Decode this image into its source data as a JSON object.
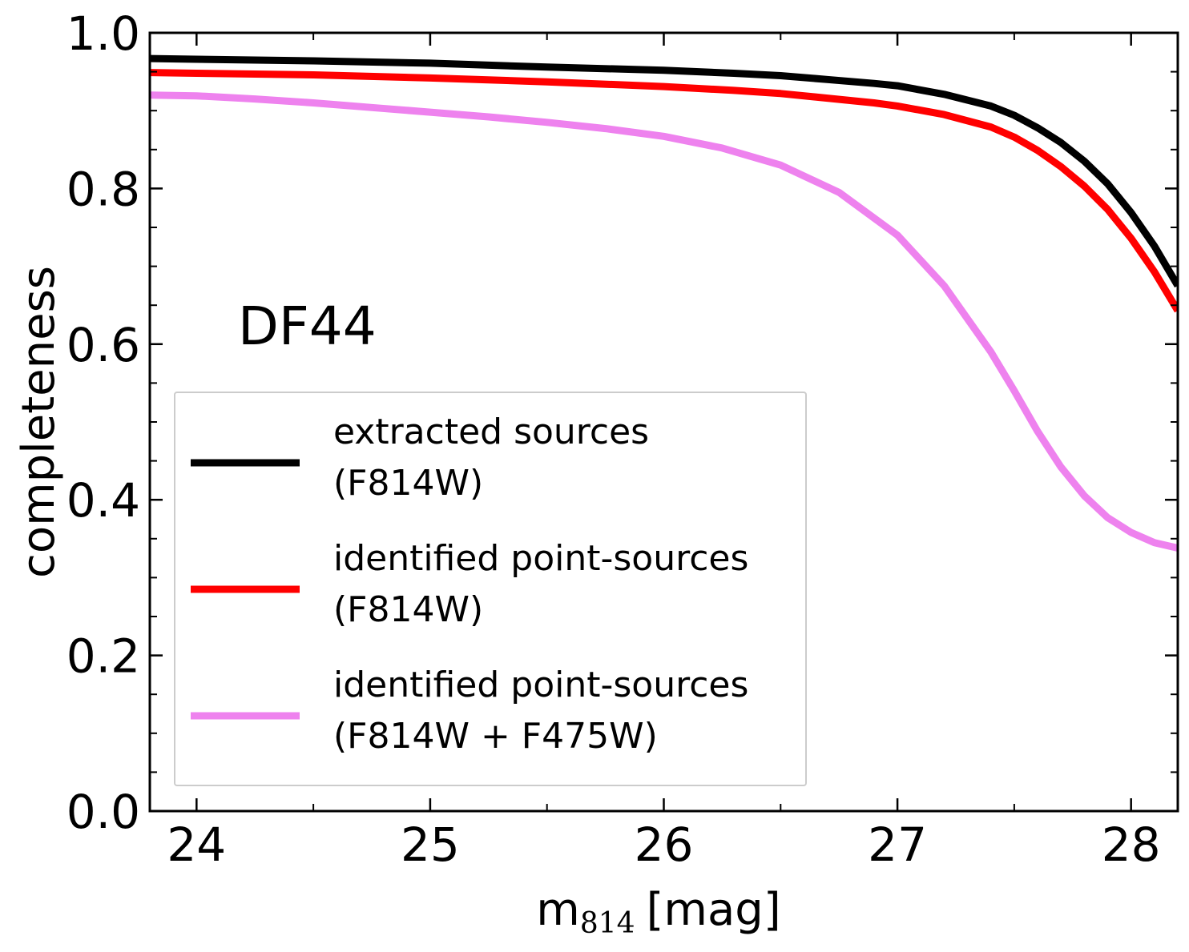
{
  "chart_data": {
    "type": "line",
    "xlabel": "m",
    "xlabel_subscript": "814",
    "xlabel_unit": "[mag]",
    "ylabel": "completeness",
    "xlim": [
      23.8,
      28.2
    ],
    "ylim": [
      0.0,
      1.0
    ],
    "x_ticks": [
      24,
      25,
      26,
      27,
      28
    ],
    "x_tick_labels": [
      "24",
      "25",
      "26",
      "27",
      "28"
    ],
    "y_ticks": [
      0.0,
      0.2,
      0.4,
      0.6,
      0.8,
      1.0
    ],
    "y_tick_labels": [
      "0.0",
      "0.2",
      "0.4",
      "0.6",
      "0.8",
      "1.0"
    ],
    "x_minor_step": 0.5,
    "y_minor_step": 0.05,
    "grid": false,
    "annotation": "DF44",
    "legend_position": "lower-left",
    "series": [
      {
        "name_line1": "extracted sources",
        "name_line2": "(F814W)",
        "color": "#000000",
        "x": [
          23.8,
          24.0,
          24.5,
          25.0,
          25.5,
          26.0,
          26.3,
          26.5,
          26.7,
          26.9,
          27.0,
          27.2,
          27.4,
          27.5,
          27.6,
          27.7,
          27.8,
          27.9,
          28.0,
          28.1,
          28.2
        ],
        "y": [
          0.967,
          0.966,
          0.964,
          0.961,
          0.956,
          0.952,
          0.948,
          0.945,
          0.94,
          0.935,
          0.932,
          0.921,
          0.906,
          0.894,
          0.878,
          0.859,
          0.835,
          0.806,
          0.769,
          0.726,
          0.675
        ]
      },
      {
        "name_line1": "identified point-sources",
        "name_line2": "(F814W)",
        "color": "#ff0000",
        "x": [
          23.8,
          24.0,
          24.5,
          25.0,
          25.5,
          26.0,
          26.3,
          26.5,
          26.7,
          26.9,
          27.0,
          27.2,
          27.4,
          27.5,
          27.6,
          27.7,
          27.8,
          27.9,
          28.0,
          28.1,
          28.2
        ],
        "y": [
          0.949,
          0.948,
          0.946,
          0.942,
          0.937,
          0.931,
          0.926,
          0.922,
          0.916,
          0.91,
          0.906,
          0.895,
          0.879,
          0.866,
          0.849,
          0.828,
          0.803,
          0.773,
          0.736,
          0.693,
          0.643
        ]
      },
      {
        "name_line1": "identified point-sources",
        "name_line2": "(F814W + F475W)",
        "color": "#ee82ee",
        "x": [
          23.8,
          24.0,
          24.25,
          24.5,
          24.75,
          25.0,
          25.25,
          25.5,
          25.75,
          26.0,
          26.25,
          26.5,
          26.75,
          27.0,
          27.2,
          27.4,
          27.5,
          27.6,
          27.7,
          27.8,
          27.9,
          28.0,
          28.1,
          28.2
        ],
        "y": [
          0.92,
          0.919,
          0.915,
          0.91,
          0.904,
          0.898,
          0.892,
          0.885,
          0.877,
          0.867,
          0.852,
          0.83,
          0.795,
          0.74,
          0.675,
          0.59,
          0.54,
          0.488,
          0.442,
          0.405,
          0.377,
          0.358,
          0.345,
          0.338
        ]
      }
    ]
  }
}
